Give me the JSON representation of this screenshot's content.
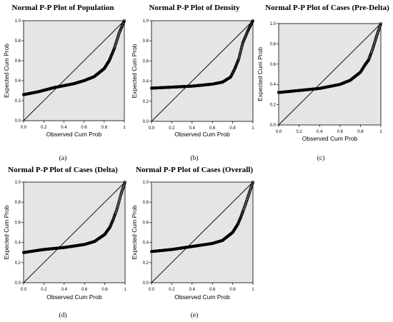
{
  "chart_data": [
    {
      "type": "scatter",
      "title": "Normal P-P Plot of Population",
      "xlabel": "Observed Cum Prob",
      "ylabel": "Expected Cum Prob",
      "caption": "(a)",
      "xlim": [
        0,
        1
      ],
      "ylim": [
        0,
        1
      ],
      "xticks": [
        "0.0",
        "0.2",
        "0.4",
        "0.6",
        "0.8",
        "1"
      ],
      "yticks": [
        "0.0",
        "0.2",
        "0.4",
        "0.6",
        "0.8",
        "1.0"
      ],
      "reference_line": [
        [
          0,
          0
        ],
        [
          1,
          1
        ]
      ],
      "curve": [
        [
          0.0,
          0.26
        ],
        [
          0.15,
          0.29
        ],
        [
          0.3,
          0.33
        ],
        [
          0.5,
          0.37
        ],
        [
          0.6,
          0.4
        ],
        [
          0.7,
          0.44
        ],
        [
          0.8,
          0.52
        ],
        [
          0.85,
          0.6
        ],
        [
          0.9,
          0.72
        ],
        [
          0.95,
          0.88
        ],
        [
          1.0,
          1.0
        ]
      ]
    },
    {
      "type": "scatter",
      "title": "Normal P-P Plot of Density",
      "xlabel": "Observed Cum Prob",
      "ylabel": "Expected Cum Prob",
      "caption": "(b)",
      "xlim": [
        0,
        1
      ],
      "ylim": [
        0,
        1
      ],
      "xticks": [
        "0.0",
        "0.2",
        "0.4",
        "0.6",
        "0.8",
        "1"
      ],
      "yticks": [
        "0.0",
        "0.2",
        "0.4",
        "0.6",
        "0.8",
        "1.0"
      ],
      "reference_line": [
        [
          0,
          0
        ],
        [
          1,
          1
        ]
      ],
      "curve": [
        [
          0.0,
          0.33
        ],
        [
          0.2,
          0.34
        ],
        [
          0.4,
          0.35
        ],
        [
          0.6,
          0.37
        ],
        [
          0.7,
          0.39
        ],
        [
          0.78,
          0.44
        ],
        [
          0.82,
          0.52
        ],
        [
          0.86,
          0.62
        ],
        [
          0.9,
          0.78
        ],
        [
          0.95,
          0.9
        ],
        [
          1.0,
          1.0
        ]
      ]
    },
    {
      "type": "scatter",
      "title": "Normal P-P Plot of Cases (Pre-Delta)",
      "xlabel": "Observed Cum Prob",
      "ylabel": "Expected Cum Prob",
      "caption": "(c)",
      "xlim": [
        0,
        1
      ],
      "ylim": [
        0,
        1
      ],
      "xticks": [
        "0.0",
        "0.2",
        "0.4",
        "0.6",
        "0.8",
        "1"
      ],
      "yticks": [
        "0.0",
        "0.2",
        "0.4",
        "0.6",
        "0.8",
        "1.0"
      ],
      "reference_line": [
        [
          0,
          0
        ],
        [
          1,
          1
        ]
      ],
      "curve": [
        [
          0.0,
          0.32
        ],
        [
          0.2,
          0.34
        ],
        [
          0.4,
          0.36
        ],
        [
          0.6,
          0.4
        ],
        [
          0.7,
          0.44
        ],
        [
          0.8,
          0.52
        ],
        [
          0.85,
          0.6
        ],
        [
          0.88,
          0.64
        ],
        [
          0.92,
          0.75
        ],
        [
          0.96,
          0.88
        ],
        [
          1.0,
          1.0
        ]
      ]
    },
    {
      "type": "scatter",
      "title": "Normal P-P Plot of Cases (Delta)",
      "xlabel": "Observed Cum Prob",
      "ylabel": "Expected Cum Prob",
      "caption": "(d)",
      "xlim": [
        0,
        1
      ],
      "ylim": [
        0,
        1
      ],
      "xticks": [
        "0.0",
        "0.2",
        "0.4",
        "0.6",
        "0.8",
        "1"
      ],
      "yticks": [
        "0.0",
        "0.2",
        "0.4",
        "0.6",
        "0.8",
        "1.0"
      ],
      "reference_line": [
        [
          0,
          0
        ],
        [
          1,
          1
        ]
      ],
      "curve": [
        [
          0.0,
          0.3
        ],
        [
          0.2,
          0.33
        ],
        [
          0.4,
          0.35
        ],
        [
          0.6,
          0.38
        ],
        [
          0.7,
          0.41
        ],
        [
          0.8,
          0.48
        ],
        [
          0.85,
          0.55
        ],
        [
          0.88,
          0.62
        ],
        [
          0.92,
          0.73
        ],
        [
          0.96,
          0.88
        ],
        [
          1.0,
          1.0
        ]
      ]
    },
    {
      "type": "scatter",
      "title": "Normal P-P Plot of Cases (Overall)",
      "xlabel": "Observed Cum Prob",
      "ylabel": "Expected Cum Prob",
      "caption": "(e)",
      "xlim": [
        0,
        1
      ],
      "ylim": [
        0,
        1
      ],
      "xticks": [
        "0.0",
        "0.2",
        "0.4",
        "0.6",
        "0.8",
        "1"
      ],
      "yticks": [
        "0.0",
        "0.2",
        "0.4",
        "0.6",
        "0.8",
        "1.0"
      ],
      "reference_line": [
        [
          0,
          0
        ],
        [
          1,
          1
        ]
      ],
      "curve": [
        [
          0.0,
          0.31
        ],
        [
          0.2,
          0.33
        ],
        [
          0.4,
          0.36
        ],
        [
          0.6,
          0.39
        ],
        [
          0.7,
          0.42
        ],
        [
          0.8,
          0.5
        ],
        [
          0.85,
          0.58
        ],
        [
          0.88,
          0.65
        ],
        [
          0.92,
          0.76
        ],
        [
          0.96,
          0.88
        ],
        [
          1.0,
          1.0
        ]
      ]
    }
  ],
  "style": {
    "plot_background": "#e5e5e5",
    "marker_stroke": "#000000",
    "reference_line_color": "#000000"
  }
}
